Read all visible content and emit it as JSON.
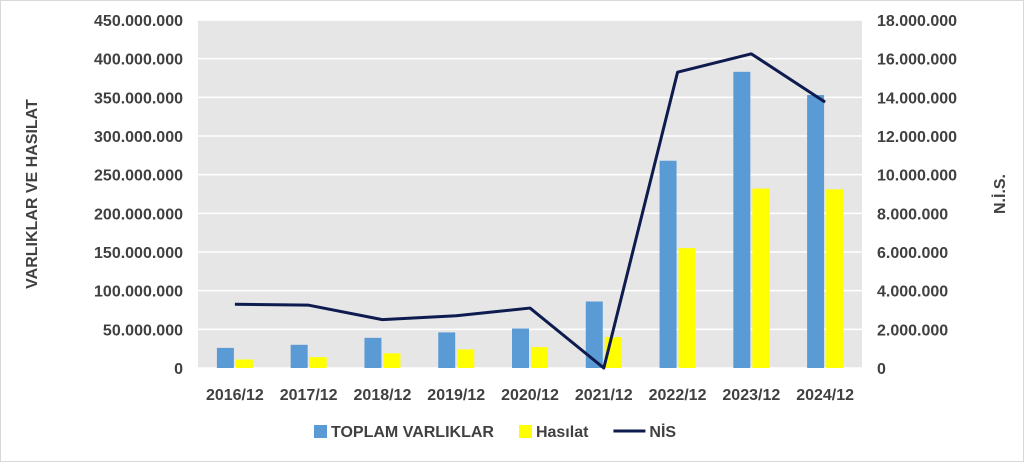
{
  "chart_data": {
    "type": "bar",
    "categories": [
      "2016/12",
      "2017/12",
      "2018/12",
      "2019/12",
      "2020/12",
      "2021/12",
      "2022/12",
      "2023/12",
      "2024/12"
    ],
    "series": [
      {
        "name": "TOPLAM VARLIKLAR",
        "kind": "bar",
        "axis": "left",
        "color": "#5b9bd5",
        "values": [
          26000000,
          30000000,
          39000000,
          46000000,
          51000000,
          86000000,
          268000000,
          383000000,
          353000000
        ]
      },
      {
        "name": "Hasılat",
        "kind": "bar",
        "axis": "left",
        "color": "#ffff00",
        "values": [
          11000000,
          14000000,
          19000000,
          24000000,
          27000000,
          40000000,
          155000000,
          232000000,
          231000000
        ]
      },
      {
        "name": "NİS",
        "kind": "line",
        "axis": "right",
        "color": "#0d1b4f",
        "values": [
          3300000,
          3250000,
          2500000,
          2700000,
          3100000,
          0,
          15300000,
          16250000,
          13750000
        ]
      }
    ],
    "ylabel": "VARLIKLAR VE HASILAT",
    "y2label": "N.İ.S.",
    "ylim": [
      0,
      450000000
    ],
    "y2lim": [
      0,
      18000000
    ],
    "yticks": [
      "0",
      "50.000.000",
      "100.000.000",
      "150.000.000",
      "200.000.000",
      "250.000.000",
      "300.000.000",
      "350.000.000",
      "400.000.000",
      "450.000.000"
    ],
    "y2ticks": [
      "0",
      "2.000.000",
      "4.000.000",
      "6.000.000",
      "8.000.000",
      "10.000.000",
      "12.000.000",
      "14.000.000",
      "16.000.000",
      "18.000.000"
    ],
    "grid": true,
    "legend": "bottom",
    "plot_background": "#e7e6e6",
    "gridline_color": "#ffffff"
  }
}
